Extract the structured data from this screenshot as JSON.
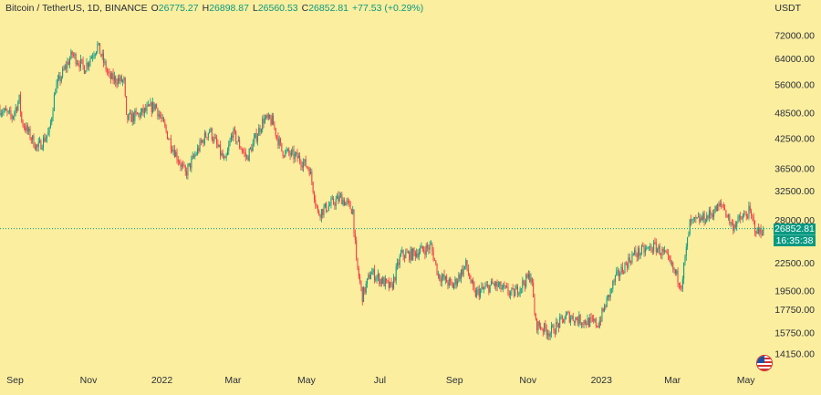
{
  "legend": {
    "symbol": "Bitcoin / TetherUS, 1D, BINANCE",
    "open_label": "O",
    "open": "26775.27",
    "high_label": "H",
    "high": "26898.87",
    "low_label": "L",
    "low": "26560.53",
    "close_label": "C",
    "close": "26852.81",
    "change": "+77.53 (+0.29%)"
  },
  "currency": "USDT",
  "last_price": {
    "price": "26852.81",
    "countdown": "16:35:38"
  },
  "colors": {
    "background": "#fbee9f",
    "up": "#089981",
    "down": "#f23645"
  },
  "chart_data": {
    "type": "candlestick",
    "y_scale": "log",
    "ylim": [
      13500,
      78000
    ],
    "xlim": [
      "2021-08-21",
      "2023-05-24"
    ],
    "y_ticks": [
      72000,
      64000,
      56000,
      48500,
      42500,
      36500,
      32500,
      28000,
      22500,
      19500,
      17750,
      15750,
      14150
    ],
    "y_tick_labels": [
      "72000.00",
      "64000.00",
      "56000.00",
      "48500.00",
      "42500.00",
      "36500.00",
      "32500.00",
      "28000.00",
      "22500.00",
      "19500.00",
      "17750.00",
      "15750.00",
      "14150.00"
    ],
    "x_ticks": [
      "2021-09-01",
      "2021-11-01",
      "2022-01-01",
      "2022-03-01",
      "2022-05-01",
      "2022-07-01",
      "2022-09-01",
      "2022-11-01",
      "2023-01-01",
      "2023-03-01",
      "2023-05-01"
    ],
    "x_tick_labels": [
      "Sep",
      "Nov",
      "2022",
      "Mar",
      "May",
      "Jul",
      "Sep",
      "Nov",
      "2023",
      "Mar",
      "May"
    ],
    "last_price": 26852.81,
    "price_path": [
      [
        "2021-08-21",
        49500
      ],
      [
        "2021-08-31",
        47500
      ],
      [
        "2021-09-06",
        52000
      ],
      [
        "2021-09-08",
        46500
      ],
      [
        "2021-09-21",
        40500
      ],
      [
        "2021-10-01",
        44000
      ],
      [
        "2021-10-06",
        55000
      ],
      [
        "2021-10-16",
        62500
      ],
      [
        "2021-10-20",
        65500
      ],
      [
        "2021-10-30",
        61000
      ],
      [
        "2021-11-10",
        68500
      ],
      [
        "2021-11-20",
        58000
      ],
      [
        "2021-12-02",
        57000
      ],
      [
        "2021-12-04",
        47000
      ],
      [
        "2021-12-14",
        48000
      ],
      [
        "2021-12-28",
        50500
      ],
      [
        "2022-01-10",
        41500
      ],
      [
        "2022-01-22",
        35500
      ],
      [
        "2022-02-05",
        42000
      ],
      [
        "2022-02-11",
        44500
      ],
      [
        "2022-02-24",
        37500
      ],
      [
        "2022-03-02",
        44000
      ],
      [
        "2022-03-14",
        38500
      ],
      [
        "2022-03-28",
        47000
      ],
      [
        "2022-04-04",
        46500
      ],
      [
        "2022-04-12",
        40000
      ],
      [
        "2022-04-26",
        38500
      ],
      [
        "2022-05-05",
        36500
      ],
      [
        "2022-05-12",
        29000
      ],
      [
        "2022-05-31",
        31500
      ],
      [
        "2022-06-10",
        29500
      ],
      [
        "2022-06-13",
        22500
      ],
      [
        "2022-06-18",
        19000
      ],
      [
        "2022-06-25",
        21500
      ],
      [
        "2022-07-12",
        19800
      ],
      [
        "2022-07-20",
        23500
      ],
      [
        "2022-07-28",
        23500
      ],
      [
        "2022-08-14",
        24500
      ],
      [
        "2022-08-20",
        21200
      ],
      [
        "2022-09-01",
        20000
      ],
      [
        "2022-09-12",
        22300
      ],
      [
        "2022-09-19",
        19200
      ],
      [
        "2022-10-05",
        20200
      ],
      [
        "2022-10-21",
        19200
      ],
      [
        "2022-11-05",
        21200
      ],
      [
        "2022-11-09",
        16500
      ],
      [
        "2022-11-21",
        15800
      ],
      [
        "2022-12-05",
        17200
      ],
      [
        "2022-12-16",
        16800
      ],
      [
        "2022-12-31",
        16500
      ],
      [
        "2023-01-14",
        20800
      ],
      [
        "2023-01-29",
        23500
      ],
      [
        "2023-02-16",
        24500
      ],
      [
        "2023-02-24",
        23500
      ],
      [
        "2023-03-10",
        20200
      ],
      [
        "2023-03-17",
        27500
      ],
      [
        "2023-03-31",
        28500
      ],
      [
        "2023-04-13",
        30400
      ],
      [
        "2023-04-21",
        27200
      ],
      [
        "2023-05-02",
        28700
      ],
      [
        "2023-05-05",
        29300
      ],
      [
        "2023-05-12",
        26300
      ],
      [
        "2023-05-17",
        26852.81
      ]
    ]
  }
}
